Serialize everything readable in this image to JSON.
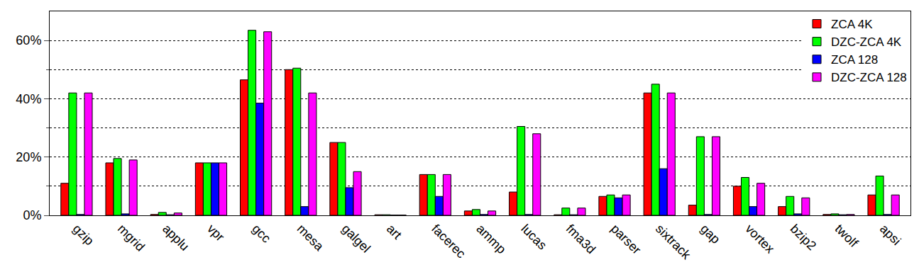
{
  "chart_data": {
    "type": "bar",
    "categories": [
      "gzip",
      "mgrid",
      "applu",
      "vpr",
      "gcc",
      "mesa",
      "galgel",
      "art",
      "facerec",
      "ammp",
      "lucas",
      "fma3d",
      "parser",
      "sixtrack",
      "gap",
      "vortex",
      "bzip2",
      "twolf",
      "apsi"
    ],
    "series": [
      {
        "name": "ZCA 4K",
        "color": "#ff0000",
        "values": [
          11,
          18,
          0.3,
          18,
          46.5,
          50,
          25,
          0.2,
          14,
          1.5,
          8,
          0.2,
          6.5,
          42,
          3.5,
          10,
          3,
          0.3,
          7
        ]
      },
      {
        "name": "DZC-ZCA 4K",
        "color": "#00ff00",
        "values": [
          42,
          19.5,
          1,
          18,
          63.5,
          50.5,
          25,
          0.2,
          14,
          2,
          30.5,
          2.5,
          7,
          45,
          27,
          13,
          6.5,
          0.5,
          13.5
        ]
      },
      {
        "name": "ZCA 128",
        "color": "#0000ff",
        "values": [
          0.3,
          0.5,
          0.2,
          18,
          38.5,
          3,
          9.5,
          0.1,
          6.5,
          0.3,
          0.3,
          0.2,
          6,
          16,
          0.3,
          3,
          0.5,
          0.2,
          0.3
        ]
      },
      {
        "name": "DZC-ZCA 128",
        "color": "#ff00ff",
        "values": [
          42,
          19,
          0.8,
          18,
          63,
          42,
          15,
          0.1,
          14,
          1.5,
          28,
          2.5,
          7,
          42,
          27,
          11,
          6,
          0.3,
          7
        ]
      }
    ],
    "ylim": [
      0,
      70
    ],
    "yticks": [
      {
        "value": 0,
        "label": "0%"
      },
      {
        "value": 20,
        "label": "20%"
      },
      {
        "value": 40,
        "label": "40%"
      },
      {
        "value": 60,
        "label": "60%"
      }
    ],
    "grid": true,
    "legend": "top right"
  }
}
